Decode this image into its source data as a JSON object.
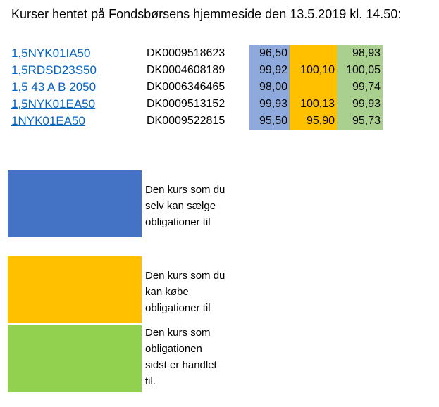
{
  "title": "Kurser hentet på Fondsbørsens hjemmeside den 13.5.2019 kl. 14.50:",
  "bonds": [
    {
      "name": "1,5NYK01IA50",
      "isin": "DK0009518623",
      "sell": "96,50",
      "buy": "",
      "last": "98,93"
    },
    {
      "name": "1,5RDSD23S50",
      "isin": "DK0004608189",
      "sell": "99,92",
      "buy": "100,10",
      "last": "100,05"
    },
    {
      "name": "1,5 43 A B 2050",
      "isin": "DK0006346465",
      "sell": "98,00",
      "buy": "",
      "last": "99,74"
    },
    {
      "name": "1,5NYK01EA50",
      "isin": "DK0009513152",
      "sell": "99,93",
      "buy": "100,13",
      "last": "99,93"
    },
    {
      "name": "1NYK01EA50",
      "isin": "DK0009522815",
      "sell": "95,50",
      "buy": "95,90",
      "last": "95,73"
    }
  ],
  "colors": {
    "sell": "#4472c4",
    "buy": "#ffc000",
    "last": "#92d050"
  },
  "legend": [
    {
      "color": "#4472c4",
      "lines": [
        "Den kurs som du",
        "selv kan sælge",
        "obligationer til"
      ]
    },
    {
      "color": "#ffc000",
      "lines": [
        "Den kurs som du",
        "kan købe",
        "obligationer til"
      ]
    },
    {
      "color": "#92d050",
      "lines": [
        "Den kurs som",
        "obligationen",
        "sidst er handlet",
        "til."
      ]
    }
  ]
}
